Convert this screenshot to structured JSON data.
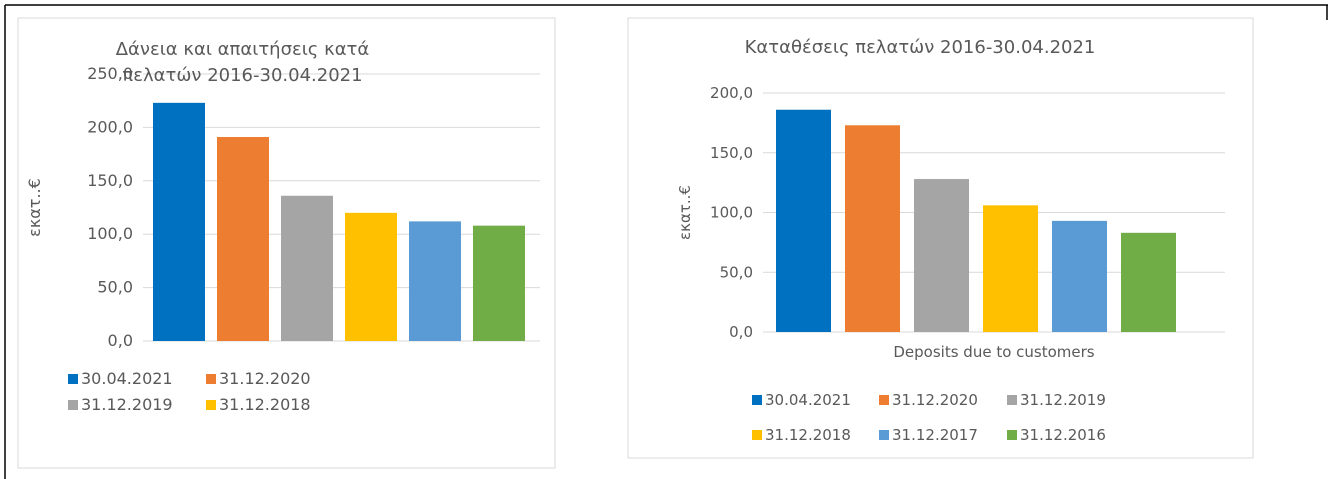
{
  "chart_data": [
    {
      "type": "bar",
      "title": "Δάνεια και απαιτήσεις κατά πελατών 2016-30.04.2021",
      "ylabel": "εκατ..€",
      "series": [
        {
          "name": "30.04.2021",
          "color": "#0070c0",
          "values": [
            223
          ]
        },
        {
          "name": "31.12.2020",
          "color": "#ed7d31",
          "values": [
            191
          ]
        },
        {
          "name": "31.12.2019",
          "color": "#a5a5a5",
          "values": [
            136
          ]
        },
        {
          "name": "31.12.2018",
          "color": "#ffc000",
          "values": [
            120
          ]
        },
        {
          "color": "#5b9bd5",
          "values": [
            112
          ]
        },
        {
          "color": "#70ad47",
          "values": [
            108
          ]
        }
      ],
      "ylim": [
        0,
        250
      ],
      "yticks": [
        {
          "value": 0,
          "label": "0,0"
        },
        {
          "value": 50,
          "label": "50,0"
        },
        {
          "value": 100,
          "label": "100,0"
        },
        {
          "value": 150,
          "label": "150,0"
        },
        {
          "value": 200,
          "label": "200,0"
        },
        {
          "value": 250,
          "label": "250,0"
        }
      ],
      "grid": true,
      "legend": "bottom"
    },
    {
      "type": "bar",
      "title": "Καταθέσεις πελατών 2016-30.04.2021",
      "ylabel": "εκατ..€",
      "xlabel": "Deposits due to customers",
      "series": [
        {
          "name": "30.04.2021",
          "color": "#0070c0",
          "values": [
            186
          ]
        },
        {
          "name": "31.12.2020",
          "color": "#ed7d31",
          "values": [
            173
          ]
        },
        {
          "name": "31.12.2019",
          "color": "#a5a5a5",
          "values": [
            128
          ]
        },
        {
          "name": "31.12.2018",
          "color": "#ffc000",
          "values": [
            106
          ]
        },
        {
          "name": "31.12.2017",
          "color": "#5b9bd5",
          "values": [
            93
          ]
        },
        {
          "name": "31.12.2016",
          "color": "#70ad47",
          "values": [
            83
          ]
        }
      ],
      "ylim": [
        0,
        200
      ],
      "yticks": [
        {
          "value": 0,
          "label": "0,0"
        },
        {
          "value": 50,
          "label": "50,0"
        },
        {
          "value": 100,
          "label": "100,0"
        },
        {
          "value": 150,
          "label": "150,0"
        },
        {
          "value": 200,
          "label": "200,0"
        }
      ],
      "grid": true,
      "legend": "bottom"
    }
  ]
}
